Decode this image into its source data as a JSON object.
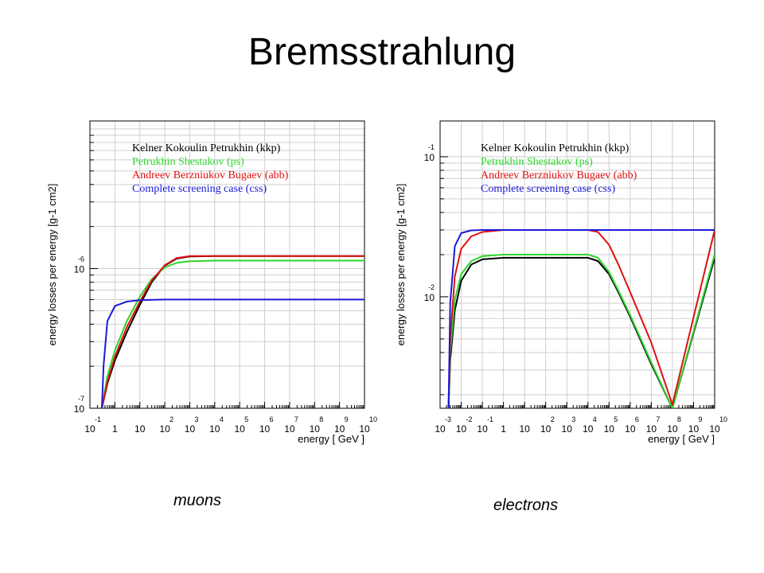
{
  "slide": {
    "title": "Bremsstrahlung",
    "captions": [
      "muons",
      "electrons"
    ]
  },
  "colors": {
    "kkp": "#000000",
    "ps": "#2bd62b",
    "abb": "#e01010",
    "css": "#1a1ad6",
    "grid": "#cfcfcf"
  },
  "chart_data": [
    {
      "type": "line",
      "title": "",
      "xlabel": "energy [ GeV ]",
      "ylabel": "energy losses per energy [g-1 cm2]",
      "x_scale": "log",
      "y_scale": "log",
      "xlim": [
        0.1,
        10000000000
      ],
      "ylim": [
        1e-07,
        1.14e-05
      ],
      "x_ticks": [
        {
          "base": "10",
          "exp": "-1"
        },
        {
          "base": "1",
          "exp": ""
        },
        {
          "base": "10",
          "exp": ""
        },
        {
          "base": "10",
          "exp": "2"
        },
        {
          "base": "10",
          "exp": "3"
        },
        {
          "base": "10",
          "exp": "4"
        },
        {
          "base": "10",
          "exp": "5"
        },
        {
          "base": "10",
          "exp": "6"
        },
        {
          "base": "10",
          "exp": "7"
        },
        {
          "base": "10",
          "exp": "8"
        },
        {
          "base": "10",
          "exp": "9"
        },
        {
          "base": "10",
          "exp": "10"
        }
      ],
      "y_ticks": [
        {
          "base": "10",
          "exp": "-7"
        },
        {
          "base": "10",
          "exp": "-6"
        }
      ],
      "legend": {
        "placement": "top-left"
      },
      "grid": true,
      "series": [
        {
          "name": "Kelner Kokoulin Petrukhin (kkp)",
          "color_key": "kkp",
          "x": [
            0.3,
            0.5,
            1,
            3,
            10,
            30,
            100,
            300,
            1000,
            10000,
            100000,
            10000000000
          ],
          "y": [
            1e-07,
            1.5e-07,
            2.2e-07,
            3.5e-07,
            5.5e-07,
            8e-07,
            1.05e-06,
            1.18e-06,
            1.22e-06,
            1.23e-06,
            1.23e-06,
            1.23e-06
          ]
        },
        {
          "name": "Petrukhin Shestakov (ps)",
          "color_key": "ps",
          "x": [
            0.3,
            0.5,
            1,
            3,
            10,
            30,
            100,
            300,
            1000,
            10000,
            100000,
            10000000000
          ],
          "y": [
            1e-07,
            1.7e-07,
            2.6e-07,
            4.2e-07,
            6.3e-07,
            8.4e-07,
            1.02e-06,
            1.1e-06,
            1.13e-06,
            1.14e-06,
            1.14e-06,
            1.14e-06
          ]
        },
        {
          "name": "Andreev Berzniukov Bugaev (abb)",
          "color_key": "abb",
          "x": [
            0.3,
            0.5,
            1,
            3,
            10,
            30,
            100,
            300,
            1000,
            10000,
            100000,
            10000000000
          ],
          "y": [
            1e-07,
            1.55e-07,
            2.35e-07,
            3.8e-07,
            5.8e-07,
            8.2e-07,
            1.06e-06,
            1.19e-06,
            1.23e-06,
            1.23e-06,
            1.23e-06,
            1.23e-06
          ]
        },
        {
          "name": "Complete screening case (css)",
          "color_key": "css",
          "x": [
            0.3,
            0.35,
            0.5,
            1,
            3,
            10,
            100,
            10000000000
          ],
          "y": [
            1e-07,
            2e-07,
            4.2e-07,
            5.4e-07,
            5.8e-07,
            5.95e-07,
            6e-07,
            6e-07
          ]
        }
      ]
    },
    {
      "type": "line",
      "title": "",
      "xlabel": "energy [ GeV ]",
      "ylabel": "energy losses per energy [g-1 cm2]",
      "x_scale": "log",
      "y_scale": "log",
      "xlim": [
        0.001,
        10000000000
      ],
      "ylim": [
        0.0016,
        0.18
      ],
      "x_ticks": [
        {
          "base": "10",
          "exp": "-3"
        },
        {
          "base": "10",
          "exp": "-2"
        },
        {
          "base": "10",
          "exp": "-1"
        },
        {
          "base": "1",
          "exp": ""
        },
        {
          "base": "10",
          "exp": ""
        },
        {
          "base": "10",
          "exp": "2"
        },
        {
          "base": "10",
          "exp": "3"
        },
        {
          "base": "10",
          "exp": "4"
        },
        {
          "base": "10",
          "exp": "5"
        },
        {
          "base": "10",
          "exp": "6"
        },
        {
          "base": "10",
          "exp": "7"
        },
        {
          "base": "10",
          "exp": "8"
        },
        {
          "base": "10",
          "exp": "9"
        },
        {
          "base": "10",
          "exp": "10"
        }
      ],
      "y_ticks": [
        {
          "base": "10",
          "exp": "-2"
        },
        {
          "base": "10",
          "exp": "-1"
        }
      ],
      "legend": {
        "placement": "top-left"
      },
      "grid": true,
      "series": [
        {
          "name": "Kelner Kokoulin Petrukhin (kkp)",
          "color_key": "kkp",
          "x": [
            0.0025,
            0.003,
            0.005,
            0.01,
            0.03,
            0.1,
            1,
            10000,
            30000,
            100000,
            300000,
            1000000,
            10000000,
            100000000,
            10000000000
          ],
          "y": [
            0.0016,
            0.0035,
            0.008,
            0.013,
            0.017,
            0.0185,
            0.019,
            0.019,
            0.018,
            0.0145,
            0.0105,
            0.0072,
            0.0033,
            0.0016,
            0.019
          ]
        },
        {
          "name": "Petrukhin Shestakov (ps)",
          "color_key": "ps",
          "x": [
            0.0025,
            0.003,
            0.005,
            0.01,
            0.03,
            0.1,
            1,
            10000,
            30000,
            100000,
            300000,
            1000000,
            10000000,
            100000000,
            10000000000
          ],
          "y": [
            0.0016,
            0.004,
            0.0095,
            0.0145,
            0.018,
            0.0195,
            0.02,
            0.02,
            0.019,
            0.015,
            0.0108,
            0.0074,
            0.0034,
            0.0016,
            0.02
          ]
        },
        {
          "name": "Andreev Berzniukov Bugaev (abb)",
          "color_key": "abb",
          "x": [
            0.0025,
            0.003,
            0.005,
            0.01,
            0.03,
            0.1,
            1,
            10000,
            30000,
            100000,
            300000,
            1000000,
            10000000,
            100000000,
            10000000000
          ],
          "y": [
            0.0016,
            0.005,
            0.014,
            0.022,
            0.027,
            0.029,
            0.03,
            0.03,
            0.029,
            0.0235,
            0.0165,
            0.0108,
            0.0047,
            0.0017,
            0.03
          ]
        },
        {
          "name": "Complete screening case (css)",
          "color_key": "css",
          "x": [
            0.0025,
            0.003,
            0.005,
            0.01,
            0.03,
            0.1,
            10000000000
          ],
          "y": [
            0.0016,
            0.009,
            0.023,
            0.0285,
            0.0298,
            0.03,
            0.03
          ]
        }
      ]
    }
  ]
}
